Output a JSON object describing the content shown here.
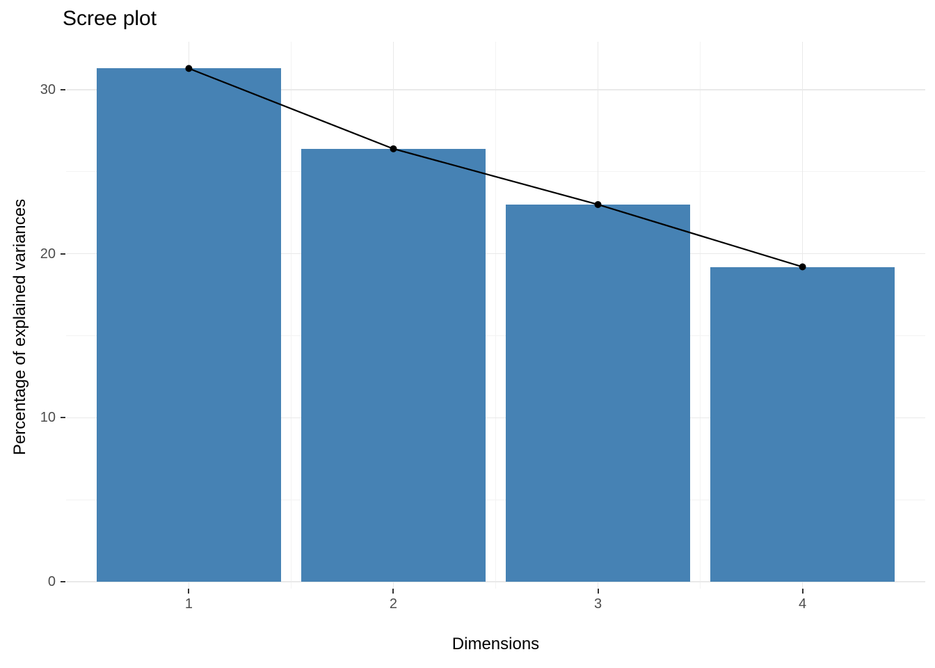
{
  "chart_data": {
    "type": "bar",
    "title": "Scree plot",
    "xlabel": "Dimensions",
    "ylabel": "Percentage of explained variances",
    "categories": [
      "1",
      "2",
      "3",
      "4"
    ],
    "series": [
      {
        "name": "Percentage of explained variances (bars)",
        "values": [
          31.3,
          26.4,
          23.0,
          19.2
        ]
      },
      {
        "name": "Percentage of explained variances (line with points)",
        "values": [
          31.3,
          26.4,
          23.0,
          19.2
        ]
      }
    ],
    "values": [
      31.3,
      26.4,
      23.0,
      19.2
    ],
    "y_ticks": [
      0,
      10,
      20,
      30
    ],
    "y_minor_ticks": [
      5,
      15,
      25
    ],
    "ylim": [
      0,
      33
    ],
    "grid": true,
    "legend_position": "none",
    "colors": {
      "bar_fill": "#4682B4",
      "line": "#000000",
      "point": "#000000",
      "grid_major": "#e9e9e9",
      "grid_minor": "#f3f3f3",
      "tick_mark": "#333333",
      "tick_label": "#4d4d4d",
      "background": "#ffffff"
    }
  }
}
